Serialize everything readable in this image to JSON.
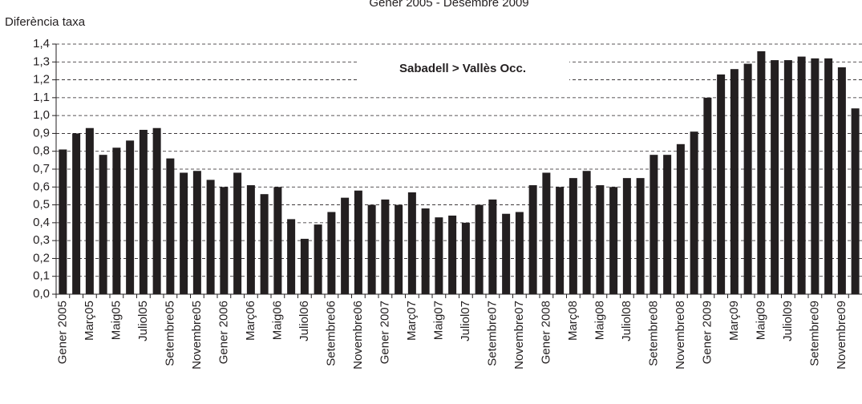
{
  "chart_data": {
    "type": "bar",
    "title": "Gener 2005 - Desembre 2009",
    "y_label": "Diferència taxa",
    "annotation": "Sabadell > Vallès Occ.",
    "color": "#231f20",
    "grid": true,
    "categories": [
      "Gener 2005",
      null,
      "Març05",
      null,
      "Maig05",
      null,
      "Juliol05",
      null,
      "Setembre05",
      null,
      "Novembre05",
      null,
      "Gener 2006",
      null,
      "Març06",
      null,
      "Maig06",
      null,
      "Juliol06",
      null,
      "Setembre06",
      null,
      "Novembre06",
      null,
      "Gener 2007",
      null,
      "Març07",
      null,
      "Maig07",
      null,
      "Juliol07",
      null,
      "Setembre07",
      null,
      "Novembre07",
      null,
      "Gener 2008",
      null,
      "Març08",
      null,
      "Maig08",
      null,
      "Juliol08",
      null,
      "Setembre08",
      null,
      "Novembre08",
      null,
      "Gener 2009",
      null,
      "Març09",
      null,
      "Maig09",
      null,
      "Juliol09",
      null,
      "Setembre09",
      null,
      "Novembre09",
      null
    ],
    "values": [
      0.81,
      0.9,
      0.93,
      0.78,
      0.82,
      0.86,
      0.92,
      0.93,
      0.76,
      0.68,
      0.69,
      0.64,
      0.6,
      0.68,
      0.61,
      0.56,
      0.6,
      0.42,
      0.31,
      0.39,
      0.46,
      0.54,
      0.58,
      0.5,
      0.53,
      0.5,
      0.57,
      0.48,
      0.43,
      0.44,
      0.4,
      0.5,
      0.53,
      0.45,
      0.46,
      0.61,
      0.68,
      0.6,
      0.65,
      0.69,
      0.61,
      0.6,
      0.65,
      0.65,
      0.78,
      0.78,
      0.84,
      0.91,
      1.1,
      1.23,
      1.26,
      1.29,
      1.36,
      1.31,
      1.31,
      1.33,
      1.32,
      1.32,
      1.27,
      1.04
    ],
    "ylim": [
      0,
      1.4
    ],
    "yticks": [
      {
        "value": 0,
        "label": "0,0"
      },
      {
        "value": 0.1,
        "label": "0,1"
      },
      {
        "value": 0.2,
        "label": "0,2"
      },
      {
        "value": 0.3,
        "label": "0,3"
      },
      {
        "value": 0.4,
        "label": "0,4"
      },
      {
        "value": 0.5,
        "label": "0,5"
      },
      {
        "value": 0.6,
        "label": "0,6"
      },
      {
        "value": 0.7,
        "label": "0,7"
      },
      {
        "value": 0.8,
        "label": "0,8"
      },
      {
        "value": 0.9,
        "label": "0,9"
      },
      {
        "value": 1.0,
        "label": "1,0"
      },
      {
        "value": 1.1,
        "label": "1,1"
      },
      {
        "value": 1.2,
        "label": "1,2"
      },
      {
        "value": 1.3,
        "label": "1,3"
      },
      {
        "value": 1.4,
        "label": "1,4"
      }
    ]
  }
}
